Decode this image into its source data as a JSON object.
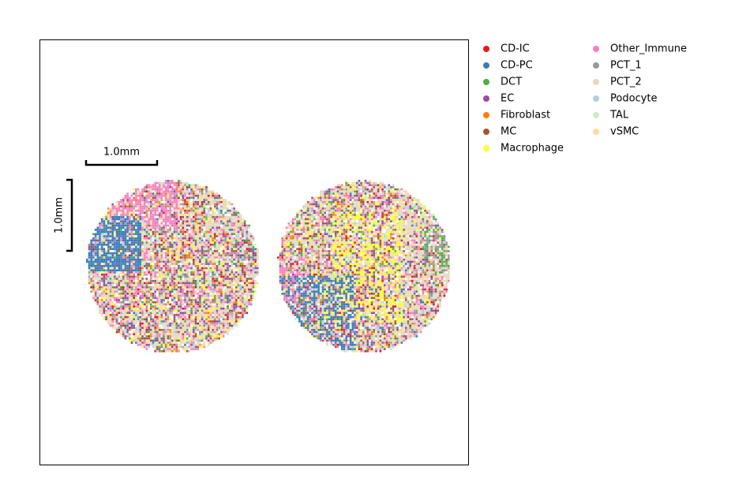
{
  "chart_data": {
    "type": "scatter",
    "series": [
      {
        "name": "CD-IC",
        "color": "#e41a1c"
      },
      {
        "name": "CD-PC",
        "color": "#377eb8"
      },
      {
        "name": "DCT",
        "color": "#4daf4a"
      },
      {
        "name": "EC",
        "color": "#984ea3"
      },
      {
        "name": "Fibroblast",
        "color": "#ff7f00"
      },
      {
        "name": "MC",
        "color": "#a65628"
      },
      {
        "name": "Macrophage",
        "color": "#ffff33"
      },
      {
        "name": "Other_Immune",
        "color": "#f781bf"
      },
      {
        "name": "PCT_1",
        "color": "#999999"
      },
      {
        "name": "PCT_2",
        "color": "#e5d8bd"
      },
      {
        "name": "Podocyte",
        "color": "#b3cde3"
      },
      {
        "name": "TAL",
        "color": "#ccebc5"
      },
      {
        "name": "vSMC",
        "color": "#fed9a6"
      }
    ],
    "scale_bar": {
      "label": "1.0mm"
    }
  }
}
